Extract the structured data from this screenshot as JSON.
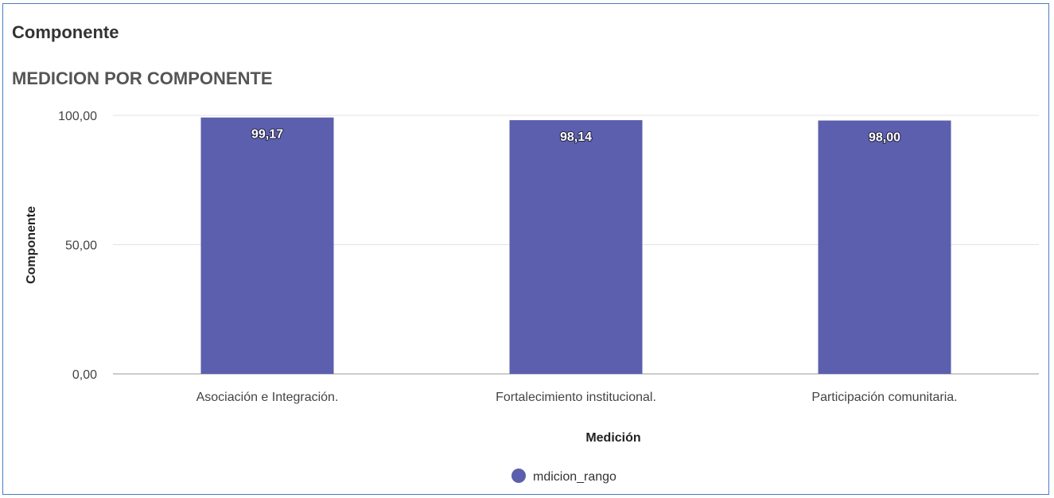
{
  "panel": {
    "title": "Componente"
  },
  "chart_data": {
    "type": "bar",
    "title": "MEDICION POR COMPONENTE",
    "xlabel": "Medición",
    "ylabel": "Componente",
    "categories": [
      "Asociación e Integración.",
      "Fortalecimiento institucional.",
      "Participación comunitaria."
    ],
    "series": [
      {
        "name": "mdicion_rango",
        "values": [
          99.17,
          98.14,
          98.0
        ],
        "color": "#5b5fad"
      }
    ],
    "data_labels": [
      "99,17",
      "98,14",
      "98,00"
    ],
    "ylim": [
      0,
      100
    ],
    "yticks": [
      0,
      50,
      100
    ],
    "ytick_labels": [
      "0,00",
      "50,00",
      "100,00"
    ],
    "grid": true,
    "legend_position": "bottom-center"
  }
}
